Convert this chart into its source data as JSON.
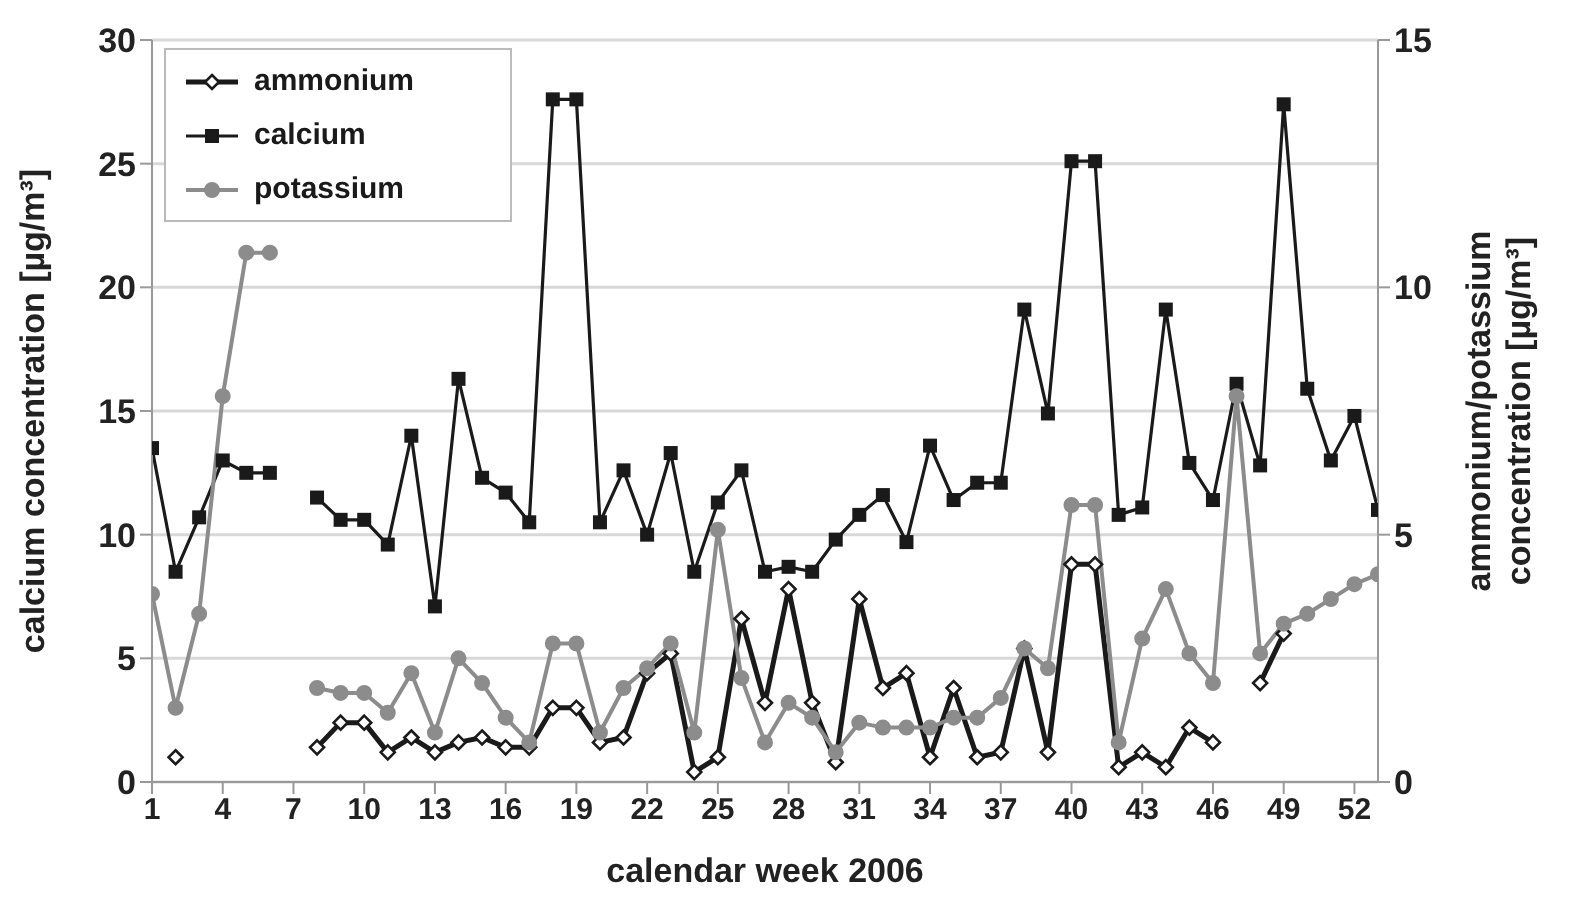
{
  "chart_data": {
    "type": "line",
    "xlabel": "calendar week 2006",
    "ylabel": "calcium concentration [µg/m³]",
    "y2label": "ammonium/potassium\nconcentration [µg/m³]",
    "x": [
      1,
      2,
      3,
      4,
      5,
      6,
      7,
      8,
      9,
      10,
      11,
      12,
      13,
      14,
      15,
      16,
      17,
      18,
      19,
      20,
      21,
      22,
      23,
      24,
      25,
      26,
      27,
      28,
      29,
      30,
      31,
      32,
      33,
      34,
      35,
      36,
      37,
      38,
      39,
      40,
      41,
      42,
      43,
      44,
      45,
      46,
      47,
      48,
      49,
      50,
      51,
      52,
      53
    ],
    "xlim": [
      1,
      53
    ],
    "xticks": [
      1,
      4,
      7,
      10,
      13,
      16,
      19,
      22,
      25,
      28,
      31,
      34,
      37,
      40,
      43,
      46,
      49,
      52
    ],
    "ylim": [
      0,
      30
    ],
    "yticks": [
      0,
      5,
      10,
      15,
      20,
      25,
      30
    ],
    "y2lim": [
      0,
      15
    ],
    "y2ticks": [
      0,
      5,
      10,
      15
    ],
    "grid": "y",
    "legend": "top left",
    "series": [
      {
        "name": "ammonium",
        "color": "#1a1a1a",
        "marker": "diamond",
        "axis": "y2",
        "values": [
          null,
          0.5,
          null,
          null,
          null,
          null,
          null,
          0.7,
          1.2,
          1.2,
          0.6,
          0.9,
          0.6,
          0.8,
          0.9,
          0.7,
          0.7,
          1.5,
          1.5,
          0.8,
          0.9,
          2.2,
          2.6,
          0.2,
          0.5,
          3.3,
          1.6,
          3.9,
          1.6,
          0.4,
          3.7,
          1.9,
          2.2,
          0.5,
          1.9,
          0.5,
          0.6,
          2.7,
          0.6,
          4.4,
          4.4,
          0.3,
          0.6,
          0.3,
          1.1,
          0.8,
          null,
          2.0,
          3.0,
          null,
          null,
          null,
          null
        ]
      },
      {
        "name": "calcium",
        "color": "#1a1a1a",
        "marker": "square",
        "values": [
          13.5,
          8.5,
          10.7,
          13,
          12.5,
          12.5,
          null,
          11.5,
          10.6,
          10.6,
          9.6,
          14,
          7.1,
          16.3,
          12.3,
          11.7,
          10.5,
          27.6,
          27.6,
          10.5,
          12.6,
          10,
          13.3,
          8.5,
          11.3,
          12.6,
          8.5,
          8.7,
          8.5,
          9.8,
          10.8,
          11.6,
          9.7,
          13.6,
          11.4,
          12.1,
          12.1,
          19.1,
          14.9,
          25.1,
          25.1,
          10.8,
          11.1,
          19.1,
          12.9,
          11.4,
          16.1,
          12.8,
          27.4,
          15.9,
          13,
          14.8,
          11
        ]
      },
      {
        "name": "potassium",
        "color": "#8c8c8c",
        "marker": "circle",
        "axis": "y2",
        "values": [
          3.8,
          1.5,
          3.4,
          7.8,
          10.7,
          10.7,
          null,
          1.9,
          1.8,
          1.8,
          1.4,
          2.2,
          1.0,
          2.5,
          2.0,
          1.3,
          0.8,
          2.8,
          2.8,
          1.0,
          1.9,
          2.3,
          2.8,
          1.0,
          5.1,
          2.1,
          0.8,
          1.6,
          1.3,
          0.6,
          1.2,
          1.1,
          1.1,
          1.1,
          1.3,
          1.3,
          1.7,
          2.7,
          2.3,
          5.6,
          5.6,
          0.8,
          2.9,
          3.9,
          2.6,
          2.0,
          7.8,
          2.6,
          3.2,
          3.4,
          3.7,
          4.0,
          4.2
        ]
      }
    ]
  }
}
